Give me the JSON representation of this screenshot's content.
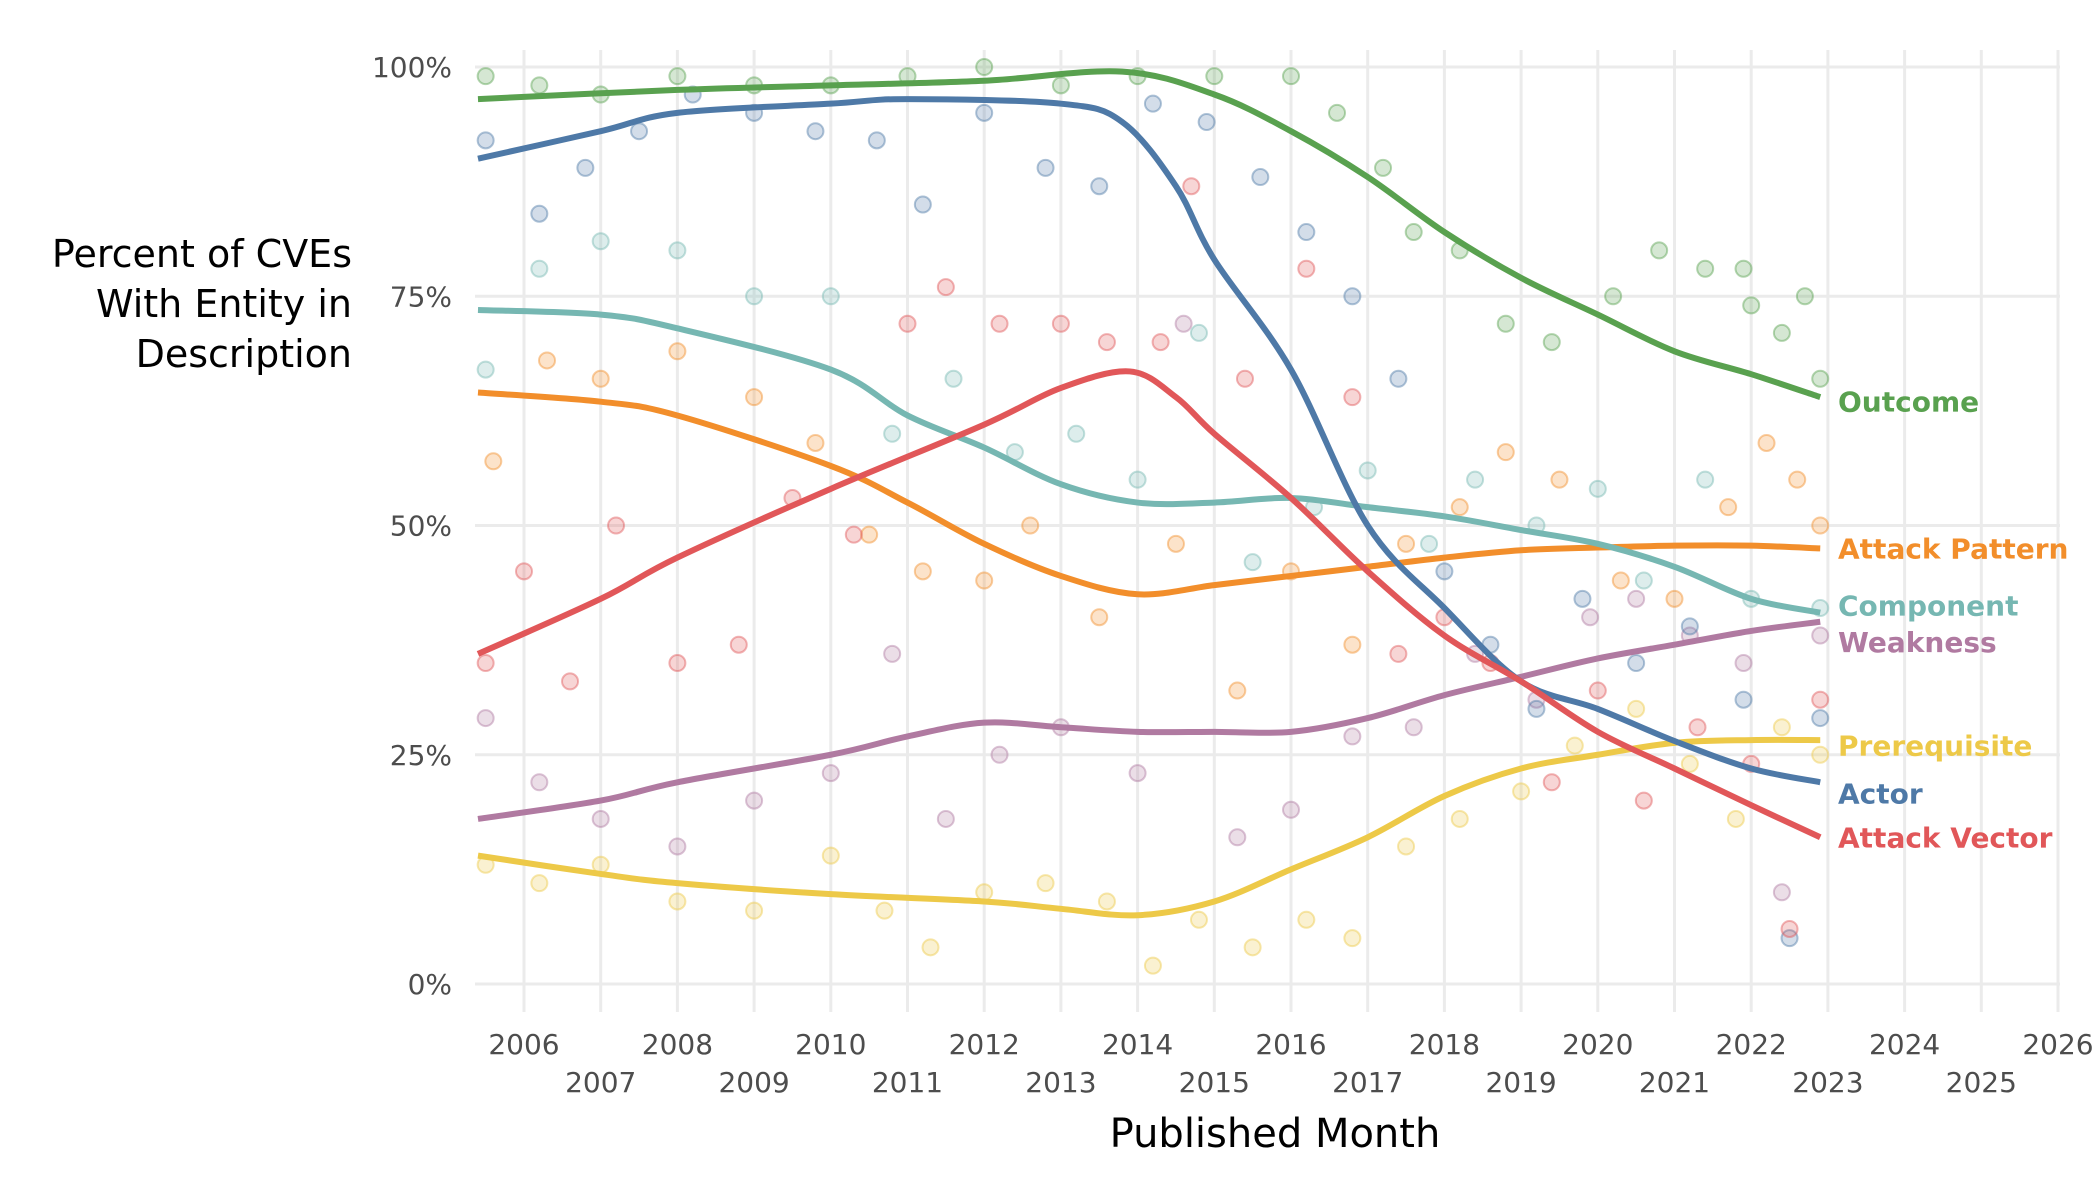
{
  "chart_data": {
    "type": "line",
    "subtype": "scatter with smoothed trend lines",
    "xlabel": "Published Month",
    "ylabel": "Percent of CVEs With Entity in Description",
    "ylabel_lines": [
      "Percent of CVEs",
      "With Entity in",
      "Description"
    ],
    "xlim": [
      2005.4,
      2026
    ],
    "ylim": [
      0,
      100
    ],
    "x_ticks": [
      "2006",
      "2007",
      "2008",
      "2009",
      "2010",
      "2011",
      "2012",
      "2013",
      "2014",
      "2015",
      "2016",
      "2017",
      "2018",
      "2019",
      "2020",
      "2021",
      "2022",
      "2023",
      "2024",
      "2025",
      "2026"
    ],
    "y_ticks": [
      "0%",
      "25%",
      "50%",
      "75%",
      "100%"
    ],
    "y_tick_values": [
      0,
      25,
      50,
      75,
      100
    ],
    "grid": true,
    "legend": "direct labels at right end of lines",
    "series": [
      {
        "name": "Outcome",
        "color": "#59a14f",
        "x": [
          2005.4,
          2008,
          2010,
          2012,
          2013.8,
          2015,
          2016,
          2017,
          2018,
          2019,
          2020,
          2021,
          2022,
          2022.9
        ],
        "y": [
          96.5,
          97.5,
          98,
          98.5,
          99.5,
          97,
          93,
          88,
          82,
          77,
          73,
          69,
          66.5,
          64
        ],
        "points": [
          [
            2005.5,
            99
          ],
          [
            2006.2,
            98
          ],
          [
            2007,
            97
          ],
          [
            2008,
            99
          ],
          [
            2009,
            98
          ],
          [
            2010,
            98
          ],
          [
            2011,
            99
          ],
          [
            2012,
            100
          ],
          [
            2013,
            98
          ],
          [
            2014,
            99
          ],
          [
            2015,
            99
          ],
          [
            2016,
            99
          ],
          [
            2016.6,
            95
          ],
          [
            2017.2,
            89
          ],
          [
            2017.6,
            82
          ],
          [
            2018.2,
            80
          ],
          [
            2018.8,
            72
          ],
          [
            2019.4,
            70
          ],
          [
            2020.2,
            75
          ],
          [
            2020.8,
            80
          ],
          [
            2021.4,
            78
          ],
          [
            2022,
            74
          ],
          [
            2022.4,
            71
          ],
          [
            2022.9,
            66
          ],
          [
            2021.9,
            78
          ],
          [
            2022.7,
            75
          ]
        ]
      },
      {
        "name": "Attack Pattern",
        "color": "#f28e2b",
        "x": [
          2005.4,
          2007,
          2008,
          2010,
          2011,
          2012,
          2013,
          2014,
          2015,
          2016,
          2017,
          2018,
          2019,
          2020,
          2021,
          2022,
          2022.9
        ],
        "y": [
          64.5,
          63.5,
          62,
          56.5,
          52.5,
          48,
          44.5,
          42.5,
          43.5,
          44.5,
          45.5,
          46.5,
          47.3,
          47.6,
          47.8,
          47.8,
          47.5
        ],
        "points": [
          [
            2005.6,
            57
          ],
          [
            2006.3,
            68
          ],
          [
            2007,
            66
          ],
          [
            2008,
            69
          ],
          [
            2009,
            64
          ],
          [
            2009.8,
            59
          ],
          [
            2010.5,
            49
          ],
          [
            2011.2,
            45
          ],
          [
            2012,
            44
          ],
          [
            2012.6,
            50
          ],
          [
            2013.5,
            40
          ],
          [
            2014.5,
            48
          ],
          [
            2015.3,
            32
          ],
          [
            2016,
            45
          ],
          [
            2016.8,
            37
          ],
          [
            2017.5,
            48
          ],
          [
            2018.2,
            52
          ],
          [
            2018.8,
            58
          ],
          [
            2019.5,
            55
          ],
          [
            2020.3,
            44
          ],
          [
            2021,
            42
          ],
          [
            2021.7,
            52
          ],
          [
            2022.2,
            59
          ],
          [
            2022.6,
            55
          ],
          [
            2022.9,
            50
          ]
        ]
      },
      {
        "name": "Component",
        "color": "#76b7b2",
        "x": [
          2005.4,
          2007,
          2008,
          2010,
          2011,
          2012,
          2013,
          2014,
          2015,
          2016,
          2017,
          2018,
          2019,
          2020,
          2021,
          2022,
          2022.9
        ],
        "y": [
          73.5,
          73,
          71.5,
          67,
          62,
          58.5,
          54.5,
          52.5,
          52.5,
          53,
          52,
          51,
          49.5,
          48,
          45.5,
          42,
          40.5
        ],
        "points": [
          [
            2005.5,
            67
          ],
          [
            2006.2,
            78
          ],
          [
            2007,
            81
          ],
          [
            2008,
            80
          ],
          [
            2009,
            75
          ],
          [
            2010,
            75
          ],
          [
            2010.8,
            60
          ],
          [
            2011.6,
            66
          ],
          [
            2012.4,
            58
          ],
          [
            2013.2,
            60
          ],
          [
            2014,
            55
          ],
          [
            2014.8,
            71
          ],
          [
            2015.5,
            46
          ],
          [
            2016.3,
            52
          ],
          [
            2017,
            56
          ],
          [
            2017.8,
            48
          ],
          [
            2018.4,
            55
          ],
          [
            2019.2,
            50
          ],
          [
            2020,
            54
          ],
          [
            2020.6,
            44
          ],
          [
            2021.4,
            55
          ],
          [
            2022,
            42
          ],
          [
            2022.9,
            41
          ]
        ]
      },
      {
        "name": "Weakness",
        "color": "#b07aa1",
        "x": [
          2005.4,
          2007,
          2008,
          2010,
          2011,
          2012,
          2013,
          2014,
          2015,
          2016,
          2017,
          2018,
          2019,
          2020,
          2021,
          2022,
          2022.9
        ],
        "y": [
          18,
          20,
          22,
          25,
          27,
          28.5,
          28,
          27.5,
          27.5,
          27.5,
          29,
          31.5,
          33.5,
          35.5,
          37,
          38.5,
          39.5
        ],
        "points": [
          [
            2005.5,
            29
          ],
          [
            2006.2,
            22
          ],
          [
            2007,
            18
          ],
          [
            2008,
            15
          ],
          [
            2009,
            20
          ],
          [
            2010,
            23
          ],
          [
            2010.8,
            36
          ],
          [
            2011.5,
            18
          ],
          [
            2012.2,
            25
          ],
          [
            2013,
            28
          ],
          [
            2014,
            23
          ],
          [
            2014.6,
            72
          ],
          [
            2015.3,
            16
          ],
          [
            2016,
            19
          ],
          [
            2016.8,
            27
          ],
          [
            2017.6,
            28
          ],
          [
            2018.4,
            36
          ],
          [
            2019.2,
            31
          ],
          [
            2019.9,
            40
          ],
          [
            2020.5,
            42
          ],
          [
            2021.2,
            38
          ],
          [
            2021.9,
            35
          ],
          [
            2022.4,
            10
          ],
          [
            2022.9,
            38
          ]
        ]
      },
      {
        "name": "Prerequisite",
        "color": "#edc948",
        "x": [
          2005.4,
          2007,
          2008,
          2010,
          2012,
          2013,
          2014,
          2015,
          2016,
          2017,
          2018,
          2019,
          2020,
          2021,
          2022,
          2022.9
        ],
        "y": [
          14,
          12,
          11,
          9.8,
          9,
          8.2,
          7.5,
          9,
          12.5,
          16,
          20.5,
          23.5,
          25,
          26.3,
          26.6,
          26.6
        ],
        "points": [
          [
            2005.5,
            13
          ],
          [
            2006.2,
            11
          ],
          [
            2007,
            13
          ],
          [
            2008,
            9
          ],
          [
            2009,
            8
          ],
          [
            2010,
            14
          ],
          [
            2010.7,
            8
          ],
          [
            2011.3,
            4
          ],
          [
            2012,
            10
          ],
          [
            2012.8,
            11
          ],
          [
            2013.6,
            9
          ],
          [
            2014.2,
            2
          ],
          [
            2014.8,
            7
          ],
          [
            2015.5,
            4
          ],
          [
            2016.2,
            7
          ],
          [
            2016.8,
            5
          ],
          [
            2017.5,
            15
          ],
          [
            2018.2,
            18
          ],
          [
            2019,
            21
          ],
          [
            2019.7,
            26
          ],
          [
            2020.5,
            30
          ],
          [
            2021.2,
            24
          ],
          [
            2021.8,
            18
          ],
          [
            2022.4,
            28
          ],
          [
            2022.9,
            25
          ]
        ]
      },
      {
        "name": "Actor",
        "color": "#4e79a7",
        "x": [
          2005.4,
          2007,
          2008,
          2010,
          2011,
          2013,
          2013.8,
          2014.5,
          2015,
          2016,
          2017,
          2018,
          2019,
          2020,
          2021,
          2022,
          2022.9
        ],
        "y": [
          90,
          93,
          95,
          96,
          96.5,
          96,
          94,
          87,
          79,
          67,
          50,
          41,
          33,
          30,
          26.5,
          23.5,
          22
        ],
        "points": [
          [
            2005.5,
            92
          ],
          [
            2006.2,
            84
          ],
          [
            2006.8,
            89
          ],
          [
            2007.5,
            93
          ],
          [
            2008.2,
            97
          ],
          [
            2009,
            95
          ],
          [
            2009.8,
            93
          ],
          [
            2010.6,
            92
          ],
          [
            2011.2,
            85
          ],
          [
            2012,
            95
          ],
          [
            2012.8,
            89
          ],
          [
            2013.5,
            87
          ],
          [
            2014.2,
            96
          ],
          [
            2014.9,
            94
          ],
          [
            2015.6,
            88
          ],
          [
            2016.2,
            82
          ],
          [
            2016.8,
            75
          ],
          [
            2017.4,
            66
          ],
          [
            2018,
            45
          ],
          [
            2018.6,
            37
          ],
          [
            2019.2,
            30
          ],
          [
            2019.8,
            42
          ],
          [
            2020.5,
            35
          ],
          [
            2021.2,
            39
          ],
          [
            2021.9,
            31
          ],
          [
            2022.5,
            5
          ],
          [
            2022.9,
            29
          ]
        ]
      },
      {
        "name": "Attack Vector",
        "color": "#e15759",
        "x": [
          2005.4,
          2007,
          2008,
          2010,
          2012,
          2013,
          2013.9,
          2014.5,
          2015,
          2016,
          2017,
          2018,
          2019,
          2020,
          2021,
          2022,
          2022.9
        ],
        "y": [
          36,
          42,
          46.5,
          54,
          61,
          65,
          66.8,
          64,
          60,
          53,
          45,
          38,
          33,
          27.5,
          23.5,
          19.5,
          16
        ],
        "points": [
          [
            2005.5,
            35
          ],
          [
            2006,
            45
          ],
          [
            2006.6,
            33
          ],
          [
            2007.2,
            50
          ],
          [
            2008,
            35
          ],
          [
            2008.8,
            37
          ],
          [
            2009.5,
            53
          ],
          [
            2010.3,
            49
          ],
          [
            2011,
            72
          ],
          [
            2011.5,
            76
          ],
          [
            2012.2,
            72
          ],
          [
            2013,
            72
          ],
          [
            2013.6,
            70
          ],
          [
            2014.3,
            70
          ],
          [
            2014.7,
            87
          ],
          [
            2015.4,
            66
          ],
          [
            2016.2,
            78
          ],
          [
            2016.8,
            64
          ],
          [
            2017.4,
            36
          ],
          [
            2018,
            40
          ],
          [
            2018.6,
            35
          ],
          [
            2019.4,
            22
          ],
          [
            2020,
            32
          ],
          [
            2020.6,
            20
          ],
          [
            2021.3,
            28
          ],
          [
            2022,
            24
          ],
          [
            2022.5,
            6
          ],
          [
            2022.9,
            31
          ]
        ]
      }
    ]
  }
}
